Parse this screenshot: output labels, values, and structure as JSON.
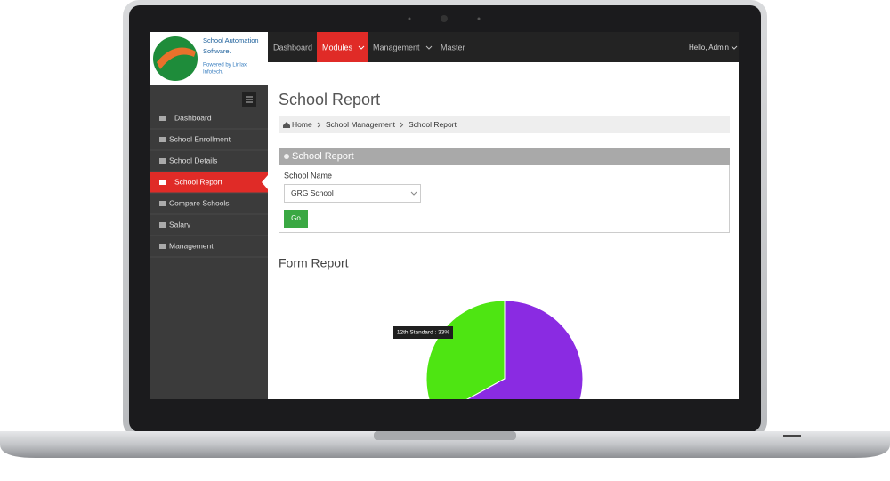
{
  "app": {
    "logo_text": [
      "School Automation",
      "Software."
    ],
    "powered_by": [
      "Powered by Linlax",
      "Infotech."
    ]
  },
  "nav": {
    "items": [
      "Dashboard",
      "Modules",
      "Management",
      "Master"
    ],
    "active": 1,
    "user": "Hello, Admin"
  },
  "sidebar": {
    "items": [
      "Dashboard",
      "School Enrollment",
      "School Details",
      "School Report",
      "Compare Schools",
      "Salary",
      "Management"
    ],
    "active": 3
  },
  "page": {
    "title": "School Report",
    "breadcrumb": [
      "Home",
      "School Management",
      "School Report"
    ]
  },
  "panel": {
    "title": "School Report",
    "field_label": "School Name",
    "selected": "GRG School",
    "button": "Go"
  },
  "report": {
    "title": "Form Report",
    "chart": {
      "type": "pie",
      "values": [
        33,
        67
      ],
      "colors": [
        "#4ee512",
        "#8a2be2"
      ],
      "tooltip": "12th Standard : 33%"
    }
  }
}
